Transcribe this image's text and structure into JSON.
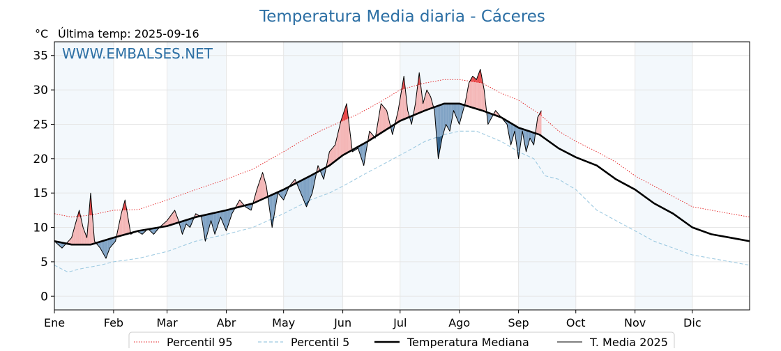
{
  "chart_data": {
    "type": "line",
    "title": "Temperatura Media diaria - Cáceres",
    "unit_label": "°C",
    "last_temp_label": "Última temp: 2025-09-16",
    "watermark": "WWW.EMBALSES.NET",
    "xlabel": "",
    "ylabel": "",
    "x_range_days": [
      1,
      365
    ],
    "ylim": [
      -2,
      37
    ],
    "yticks": [
      0,
      5,
      10,
      15,
      20,
      25,
      30,
      35
    ],
    "months": [
      {
        "label": "Ene",
        "start_day": 1
      },
      {
        "label": "Feb",
        "start_day": 32
      },
      {
        "label": "Mar",
        "start_day": 60
      },
      {
        "label": "Abr",
        "start_day": 91
      },
      {
        "label": "May",
        "start_day": 121
      },
      {
        "label": "Jun",
        "start_day": 152
      },
      {
        "label": "Jul",
        "start_day": 182
      },
      {
        "label": "Ago",
        "start_day": 213
      },
      {
        "label": "Sep",
        "start_day": 244
      },
      {
        "label": "Oct",
        "start_day": 274
      },
      {
        "label": "Nov",
        "start_day": 305
      },
      {
        "label": "Dic",
        "start_day": 335
      }
    ],
    "grid": true,
    "legend_position": "bottom",
    "series": [
      {
        "name": "Percentil 95",
        "style": "dotted",
        "color": "#e31a1c",
        "points": [
          [
            1,
            12
          ],
          [
            10,
            11.5
          ],
          [
            20,
            11.8
          ],
          [
            32,
            12.5
          ],
          [
            45,
            12.6
          ],
          [
            60,
            14
          ],
          [
            75,
            15.5
          ],
          [
            91,
            17
          ],
          [
            105,
            18.5
          ],
          [
            121,
            21
          ],
          [
            130,
            22.5
          ],
          [
            140,
            24
          ],
          [
            152,
            25.5
          ],
          [
            160,
            26.5
          ],
          [
            170,
            28
          ],
          [
            182,
            30
          ],
          [
            195,
            31
          ],
          [
            205,
            31.5
          ],
          [
            213,
            31.5
          ],
          [
            225,
            31
          ],
          [
            235,
            29.5
          ],
          [
            244,
            28.5
          ],
          [
            255,
            26.5
          ],
          [
            265,
            24
          ],
          [
            274,
            22.5
          ],
          [
            285,
            21
          ],
          [
            295,
            19.5
          ],
          [
            305,
            17.5
          ],
          [
            315,
            16
          ],
          [
            325,
            14.5
          ],
          [
            335,
            13
          ],
          [
            345,
            12.5
          ],
          [
            355,
            12
          ],
          [
            365,
            11.5
          ]
        ]
      },
      {
        "name": "Percentil 5",
        "style": "dashed",
        "color": "#9ecae1",
        "points": [
          [
            1,
            4.5
          ],
          [
            8,
            3.5
          ],
          [
            15,
            4
          ],
          [
            25,
            4.5
          ],
          [
            32,
            5
          ],
          [
            45,
            5.5
          ],
          [
            60,
            6.5
          ],
          [
            75,
            8
          ],
          [
            91,
            9
          ],
          [
            105,
            10
          ],
          [
            121,
            12
          ],
          [
            135,
            14
          ],
          [
            145,
            15
          ],
          [
            152,
            16
          ],
          [
            165,
            18
          ],
          [
            182,
            20.5
          ],
          [
            195,
            22.5
          ],
          [
            205,
            23.5
          ],
          [
            213,
            24
          ],
          [
            222,
            24
          ],
          [
            235,
            22.5
          ],
          [
            244,
            21
          ],
          [
            252,
            20
          ],
          [
            258,
            17.5
          ],
          [
            265,
            17
          ],
          [
            274,
            15.5
          ],
          [
            285,
            12.5
          ],
          [
            295,
            11
          ],
          [
            305,
            9.5
          ],
          [
            315,
            8
          ],
          [
            325,
            7
          ],
          [
            335,
            6
          ],
          [
            345,
            5.5
          ],
          [
            355,
            5
          ],
          [
            365,
            4.5
          ]
        ]
      },
      {
        "name": "Temperatura Mediana",
        "style": "solid-thick",
        "color": "#000000",
        "points": [
          [
            1,
            8
          ],
          [
            10,
            7.5
          ],
          [
            20,
            7.5
          ],
          [
            32,
            8.5
          ],
          [
            45,
            9.5
          ],
          [
            60,
            10.2
          ],
          [
            75,
            11.5
          ],
          [
            91,
            12.5
          ],
          [
            105,
            13.5
          ],
          [
            121,
            15.5
          ],
          [
            135,
            17.5
          ],
          [
            145,
            19
          ],
          [
            152,
            20.5
          ],
          [
            165,
            22.5
          ],
          [
            182,
            25.5
          ],
          [
            195,
            27
          ],
          [
            205,
            28
          ],
          [
            213,
            28
          ],
          [
            225,
            27
          ],
          [
            235,
            26
          ],
          [
            244,
            24.5
          ],
          [
            255,
            23.5
          ],
          [
            265,
            21.5
          ],
          [
            274,
            20.2
          ],
          [
            285,
            19
          ],
          [
            295,
            17
          ],
          [
            305,
            15.5
          ],
          [
            315,
            13.5
          ],
          [
            325,
            12
          ],
          [
            335,
            10
          ],
          [
            345,
            9
          ],
          [
            355,
            8.5
          ],
          [
            365,
            8
          ]
        ]
      },
      {
        "name": "T. Media 2025",
        "style": "solid-thin",
        "color": "#000000",
        "points": [
          [
            1,
            8
          ],
          [
            5,
            7
          ],
          [
            10,
            8.5
          ],
          [
            14,
            12.5
          ],
          [
            16,
            10
          ],
          [
            18,
            8.5
          ],
          [
            20,
            15
          ],
          [
            22,
            8
          ],
          [
            25,
            7
          ],
          [
            28,
            5.5
          ],
          [
            30,
            7
          ],
          [
            33,
            8
          ],
          [
            36,
            12
          ],
          [
            38,
            14
          ],
          [
            41,
            9
          ],
          [
            44,
            9.5
          ],
          [
            47,
            9
          ],
          [
            50,
            9.8
          ],
          [
            53,
            9
          ],
          [
            56,
            10
          ],
          [
            60,
            11
          ],
          [
            64,
            12.5
          ],
          [
            66,
            11
          ],
          [
            68,
            9
          ],
          [
            70,
            10.5
          ],
          [
            72,
            10
          ],
          [
            75,
            12
          ],
          [
            78,
            11.5
          ],
          [
            80,
            8
          ],
          [
            83,
            11
          ],
          [
            85,
            9
          ],
          [
            88,
            11.5
          ],
          [
            91,
            9.5
          ],
          [
            94,
            12
          ],
          [
            98,
            14
          ],
          [
            101,
            13
          ],
          [
            104,
            12.5
          ],
          [
            107,
            15.5
          ],
          [
            110,
            18
          ],
          [
            112,
            16
          ],
          [
            115,
            10
          ],
          [
            118,
            15
          ],
          [
            121,
            14
          ],
          [
            124,
            16
          ],
          [
            127,
            17
          ],
          [
            130,
            15
          ],
          [
            133,
            13
          ],
          [
            136,
            15
          ],
          [
            139,
            19
          ],
          [
            142,
            17
          ],
          [
            145,
            21
          ],
          [
            148,
            22
          ],
          [
            151,
            25.5
          ],
          [
            154,
            28
          ],
          [
            157,
            21
          ],
          [
            160,
            21.5
          ],
          [
            163,
            19
          ],
          [
            166,
            24
          ],
          [
            169,
            23
          ],
          [
            172,
            28
          ],
          [
            175,
            27
          ],
          [
            178,
            23.5
          ],
          [
            181,
            27
          ],
          [
            184,
            32
          ],
          [
            186,
            27
          ],
          [
            188,
            25
          ],
          [
            190,
            28
          ],
          [
            192,
            32.5
          ],
          [
            194,
            28
          ],
          [
            196,
            30
          ],
          [
            198,
            29
          ],
          [
            200,
            27
          ],
          [
            202,
            20
          ],
          [
            204,
            23
          ],
          [
            206,
            25
          ],
          [
            208,
            24
          ],
          [
            210,
            27
          ],
          [
            213,
            25
          ],
          [
            216,
            28
          ],
          [
            218,
            31
          ],
          [
            220,
            32
          ],
          [
            222,
            31.5
          ],
          [
            224,
            33
          ],
          [
            226,
            30
          ],
          [
            228,
            25
          ],
          [
            230,
            26
          ],
          [
            232,
            27
          ],
          [
            235,
            26
          ],
          [
            238,
            25
          ],
          [
            240,
            22
          ],
          [
            242,
            24
          ],
          [
            244,
            20
          ],
          [
            246,
            24
          ],
          [
            248,
            21
          ],
          [
            250,
            23
          ],
          [
            252,
            22
          ],
          [
            254,
            26
          ],
          [
            256,
            27
          ]
        ]
      }
    ]
  }
}
